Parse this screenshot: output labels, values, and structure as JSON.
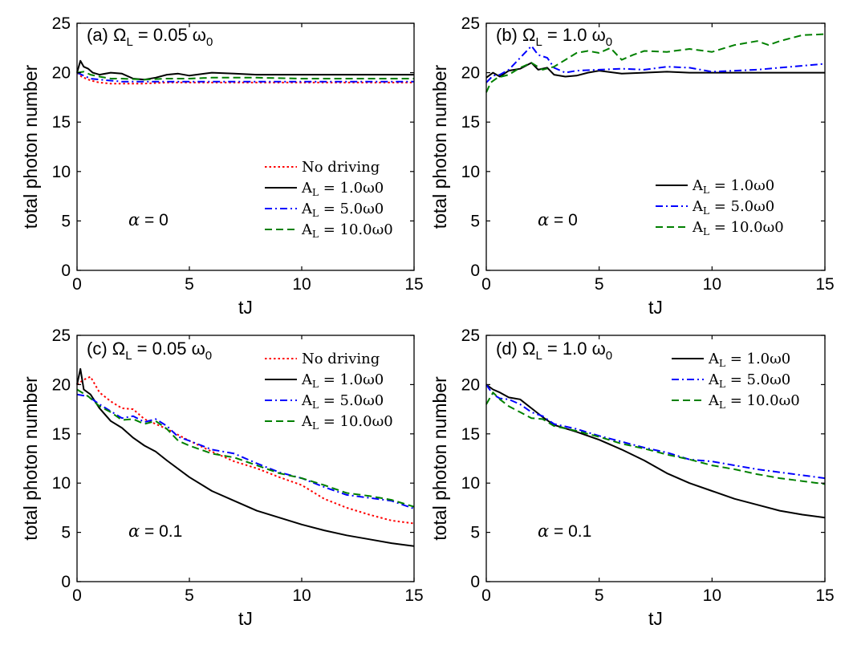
{
  "chart_data": [
    {
      "id": "a",
      "type": "line",
      "title": "(a) Ω_L = 0.05 ω_0",
      "title_parts": {
        "prefix": "(a) Ω",
        "sub1": "L",
        "mid": " = 0.05 ω",
        "sub2": "0"
      },
      "annotation": {
        "symbol": "α",
        "text": " = 0"
      },
      "xlabel": "tJ",
      "ylabel": "total photon number",
      "xlim": [
        0,
        15
      ],
      "ylim": [
        0,
        25
      ],
      "xticks": [
        "0",
        "5",
        "10",
        "15"
      ],
      "yticks": [
        "0",
        "5",
        "10",
        "15",
        "20",
        "25"
      ],
      "legend_location": "lower-right",
      "series": [
        {
          "name": "No driving",
          "legend_main": "No driving",
          "legend_sub": "",
          "legend_rest": "",
          "color": "#ff0000",
          "dash": "dotted",
          "x": [
            0,
            0.2,
            0.5,
            0.8,
            1,
            1.5,
            2,
            3,
            4,
            5,
            6,
            8,
            10,
            12,
            15
          ],
          "y": [
            20,
            19.6,
            19.3,
            19.1,
            19,
            18.9,
            18.9,
            18.9,
            19,
            19,
            19,
            19,
            19,
            19,
            19
          ]
        },
        {
          "name": "A_L = 1.0ω0",
          "legend_main": "A",
          "legend_sub": "L",
          "legend_rest": " = 1.0ω0",
          "color": "#000000",
          "dash": "solid",
          "x": [
            0,
            0.15,
            0.3,
            0.5,
            0.7,
            1,
            1.5,
            2,
            2.5,
            3,
            3.5,
            4,
            4.5,
            5,
            6,
            7,
            8,
            9,
            10,
            12,
            15
          ],
          "y": [
            20,
            21.2,
            20.6,
            20.4,
            20,
            19.8,
            20,
            19.9,
            19.4,
            19.3,
            19.5,
            19.8,
            19.9,
            19.7,
            20,
            19.9,
            19.8,
            19.8,
            19.8,
            19.8,
            19.8
          ]
        },
        {
          "name": "A_L = 5.0ω0",
          "legend_main": "A",
          "legend_sub": "L",
          "legend_rest": " = 5.0ω0",
          "color": "#0000ff",
          "dash": "dashdot",
          "x": [
            0,
            0.3,
            0.6,
            1,
            1.5,
            2,
            3,
            4,
            5,
            6,
            8,
            10,
            12,
            15
          ],
          "y": [
            20,
            19.7,
            19.4,
            19.3,
            19.2,
            19.1,
            19.1,
            19.1,
            19.1,
            19.1,
            19.1,
            19.1,
            19.1,
            19.1
          ]
        },
        {
          "name": "A_L = 10.0ω0",
          "legend_main": "A",
          "legend_sub": "L",
          "legend_rest": " = 10.0ω0",
          "color": "#008000",
          "dash": "dashed",
          "x": [
            0,
            0.3,
            0.6,
            1,
            1.5,
            2,
            3,
            4,
            5,
            6,
            8,
            10,
            12,
            15
          ],
          "y": [
            20,
            20.1,
            19.8,
            19.6,
            19.4,
            19.4,
            19.3,
            19.4,
            19.4,
            19.5,
            19.5,
            19.4,
            19.4,
            19.4
          ]
        }
      ]
    },
    {
      "id": "b",
      "type": "line",
      "title": "(b) Ω_L = 1.0 ω_0",
      "title_parts": {
        "prefix": "(b) Ω",
        "sub1": "L",
        "mid": " = 1.0 ω",
        "sub2": "0"
      },
      "annotation": {
        "symbol": "α",
        "text": " = 0"
      },
      "xlabel": "tJ",
      "ylabel": "total photon number",
      "xlim": [
        0,
        15
      ],
      "ylim": [
        0,
        25
      ],
      "xticks": [
        "0",
        "5",
        "10",
        "15"
      ],
      "yticks": [
        "0",
        "5",
        "10",
        "15",
        "20",
        "25"
      ],
      "legend_location": "lower-right",
      "series": [
        {
          "name": "A_L = 1.0ω0",
          "legend_main": "A",
          "legend_sub": "L",
          "legend_rest": " = 1.0ω0",
          "color": "#000000",
          "dash": "solid",
          "x": [
            0,
            0.3,
            0.6,
            1,
            1.5,
            2,
            2.3,
            2.7,
            3,
            3.5,
            4,
            4.5,
            5,
            6,
            7,
            8,
            9,
            10,
            12,
            15
          ],
          "y": [
            19.5,
            20,
            19.6,
            20.2,
            20.4,
            21,
            20.3,
            20.5,
            19.8,
            19.6,
            19.7,
            20,
            20.2,
            19.9,
            20,
            20.1,
            20,
            20,
            20,
            20
          ]
        },
        {
          "name": "A_L = 5.0ω0",
          "legend_main": "A",
          "legend_sub": "L",
          "legend_rest": " = 5.0ω0",
          "color": "#0000ff",
          "dash": "dashdot",
          "x": [
            0,
            0.3,
            0.6,
            1,
            1.5,
            2,
            2.3,
            2.7,
            3,
            3.5,
            4,
            5,
            6,
            7,
            8,
            9,
            10,
            11,
            12,
            13,
            14,
            15
          ],
          "y": [
            19,
            19.7,
            19.8,
            20.3,
            21.5,
            22.7,
            21.8,
            21.5,
            20.5,
            20,
            20.2,
            20.3,
            20.4,
            20.3,
            20.6,
            20.5,
            20.1,
            20.2,
            20.3,
            20.5,
            20.7,
            20.9
          ]
        },
        {
          "name": "A_L = 10.0ω0",
          "legend_main": "A",
          "legend_sub": "L",
          "legend_rest": " = 10.0ω0",
          "color": "#008000",
          "dash": "dashed",
          "x": [
            0,
            0.2,
            0.5,
            1,
            1.5,
            2,
            2.5,
            3,
            3.5,
            4,
            4.5,
            5,
            5.5,
            6,
            6.5,
            7,
            8,
            9,
            10,
            11,
            12,
            12.5,
            13,
            14,
            15
          ],
          "y": [
            18,
            19,
            19.5,
            19.8,
            20.5,
            21,
            20.3,
            20.6,
            21.3,
            22,
            22.2,
            22,
            22.5,
            21.3,
            21.8,
            22.2,
            22.1,
            22.4,
            22.1,
            22.8,
            23.2,
            22.8,
            23.2,
            23.8,
            23.9
          ]
        }
      ]
    },
    {
      "id": "c",
      "type": "line",
      "title": "(c) Ω_L = 0.05 ω_0",
      "title_parts": {
        "prefix": "(c) Ω",
        "sub1": "L",
        "mid": " = 0.05 ω",
        "sub2": "0"
      },
      "annotation": {
        "symbol": "α",
        "text": " = 0.1"
      },
      "xlabel": "tJ",
      "ylabel": "total photon number",
      "xlim": [
        0,
        15
      ],
      "ylim": [
        0,
        25
      ],
      "xticks": [
        "0",
        "5",
        "10",
        "15"
      ],
      "yticks": [
        "0",
        "5",
        "10",
        "15",
        "20",
        "25"
      ],
      "legend_location": "top-right",
      "series": [
        {
          "name": "No driving",
          "legend_main": "No driving",
          "legend_sub": "",
          "legend_rest": "",
          "color": "#ff0000",
          "dash": "dotted",
          "x": [
            0,
            0.3,
            0.6,
            1,
            1.5,
            2,
            2.5,
            3,
            3.5,
            4,
            5,
            6,
            7,
            8,
            9,
            10,
            11,
            12,
            13,
            14,
            15
          ],
          "y": [
            20,
            20.5,
            20.8,
            19.2,
            18.3,
            17.6,
            17.5,
            16.5,
            16,
            15.5,
            14.3,
            13.2,
            12.2,
            11.5,
            10.6,
            9.8,
            8.4,
            7.5,
            6.8,
            6.2,
            5.9
          ]
        },
        {
          "name": "A_L = 1.0ω0",
          "legend_main": "A",
          "legend_sub": "L",
          "legend_rest": " = 1.0ω0",
          "color": "#000000",
          "dash": "solid",
          "x": [
            0,
            0.15,
            0.3,
            0.6,
            1,
            1.5,
            2,
            2.5,
            3,
            3.5,
            4,
            5,
            6,
            7,
            8,
            9,
            10,
            11,
            12,
            13,
            14,
            15
          ],
          "y": [
            20,
            21.6,
            19.5,
            19,
            17.6,
            16.3,
            15.6,
            14.6,
            13.8,
            13.2,
            12.3,
            10.6,
            9.2,
            8.2,
            7.2,
            6.5,
            5.8,
            5.2,
            4.7,
            4.3,
            3.9,
            3.6
          ]
        },
        {
          "name": "A_L = 5.0ω0",
          "legend_main": "A",
          "legend_sub": "L",
          "legend_rest": " = 5.0ω0",
          "color": "#0000ff",
          "dash": "dashdot",
          "x": [
            0,
            0.5,
            1,
            1.5,
            2,
            2.5,
            3,
            3.5,
            4,
            4.5,
            5,
            6,
            7,
            8,
            9,
            10,
            11,
            12,
            13,
            14,
            15
          ],
          "y": [
            19,
            18.8,
            18,
            17.3,
            16.6,
            16.8,
            16.2,
            16.5,
            15.8,
            14.7,
            14.3,
            13.4,
            13,
            12,
            11.1,
            10.5,
            9.6,
            8.8,
            8.5,
            8.2,
            7.4
          ]
        },
        {
          "name": "A_L = 10.0ω0",
          "legend_main": "A",
          "legend_sub": "L",
          "legend_rest": " = 10.0ω0",
          "color": "#008000",
          "dash": "dashed",
          "x": [
            0,
            0.5,
            1,
            1.5,
            2,
            2.5,
            3,
            3.5,
            4,
            4.5,
            5,
            6,
            7,
            8,
            9,
            10,
            11,
            12,
            13,
            14,
            15
          ],
          "y": [
            19.5,
            18.8,
            17.8,
            17.2,
            16.4,
            16.5,
            16,
            16.3,
            15.5,
            14.3,
            13.8,
            13,
            12.6,
            11.8,
            11,
            10.5,
            9.8,
            9,
            8.7,
            8.3,
            7.6
          ]
        }
      ]
    },
    {
      "id": "d",
      "type": "line",
      "title": "(d) Ω_L = 1.0 ω_0",
      "title_parts": {
        "prefix": "(d) Ω",
        "sub1": "L",
        "mid": " = 1.0 ω",
        "sub2": "0"
      },
      "annotation": {
        "symbol": "α",
        "text": " = 0.1"
      },
      "xlabel": "tJ",
      "ylabel": "total photon number",
      "xlim": [
        0,
        15
      ],
      "ylim": [
        0,
        25
      ],
      "xticks": [
        "0",
        "5",
        "10",
        "15"
      ],
      "yticks": [
        "0",
        "5",
        "10",
        "15",
        "20",
        "25"
      ],
      "legend_location": "top-right",
      "series": [
        {
          "name": "A_L = 1.0ω0",
          "legend_main": "A",
          "legend_sub": "L",
          "legend_rest": " = 1.0ω0",
          "color": "#000000",
          "dash": "solid",
          "x": [
            0,
            0.3,
            0.6,
            1,
            1.5,
            2,
            2.5,
            3,
            4,
            5,
            6,
            7,
            8,
            9,
            10,
            11,
            12,
            13,
            14,
            15
          ],
          "y": [
            20,
            19.5,
            19.2,
            18.7,
            18.5,
            17.6,
            16.7,
            15.9,
            15.2,
            14.4,
            13.4,
            12.3,
            11,
            10,
            9.2,
            8.4,
            7.8,
            7.2,
            6.8,
            6.5
          ]
        },
        {
          "name": "A_L = 5.0ω0",
          "legend_main": "A",
          "legend_sub": "L",
          "legend_rest": " = 5.0ω0",
          "color": "#0000ff",
          "dash": "dashdot",
          "x": [
            0,
            0.3,
            0.6,
            1,
            1.5,
            2,
            2.5,
            3,
            4,
            5,
            6,
            7,
            8,
            9,
            10,
            11,
            12,
            13,
            14,
            15
          ],
          "y": [
            20,
            19,
            18.6,
            18.5,
            18,
            17.2,
            16.8,
            16,
            15.5,
            14.8,
            14.2,
            13.6,
            13.1,
            12.4,
            12.2,
            11.8,
            11.4,
            11.1,
            10.8,
            10.5
          ]
        },
        {
          "name": "A_L = 10.0ω0",
          "legend_main": "A",
          "legend_sub": "L",
          "legend_rest": " = 10.0ω0",
          "color": "#008000",
          "dash": "dashed",
          "x": [
            0,
            0.3,
            0.6,
            1,
            1.5,
            2,
            2.5,
            3,
            4,
            5,
            6,
            7,
            8,
            9,
            10,
            11,
            12,
            13,
            14,
            15
          ],
          "y": [
            18,
            19.2,
            18.5,
            17.8,
            17.2,
            16.6,
            16.5,
            15.8,
            15.3,
            14.7,
            14,
            13.5,
            12.9,
            12.4,
            11.8,
            11.4,
            10.9,
            10.5,
            10.2,
            9.9
          ]
        }
      ]
    }
  ]
}
